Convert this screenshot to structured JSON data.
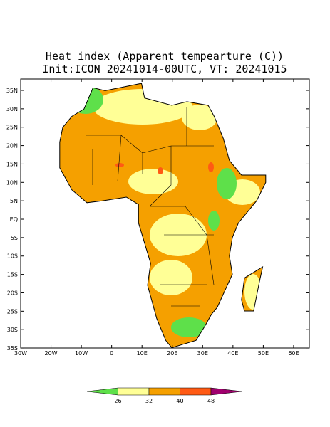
{
  "map": {
    "title": "Heat index (Apparent tempearture (C))",
    "subtitle": "Init:ICON 20241014-00UTC, VT: 20241015",
    "lat_ticks": [
      "35N",
      "30N",
      "25N",
      "20N",
      "15N",
      "10N",
      "5N",
      "EQ",
      "5S",
      "10S",
      "15S",
      "20S",
      "25S",
      "30S",
      "35S"
    ],
    "lon_ticks": [
      "30W",
      "20W",
      "10W",
      "0",
      "10E",
      "20E",
      "30E",
      "40E",
      "50E",
      "60E"
    ],
    "colorbar": {
      "labels": [
        "26",
        "32",
        "40",
        "48"
      ],
      "colors": [
        "#5ee04a",
        "#ffff96",
        "#f5a000",
        "#ff5a14",
        "#a0006e"
      ]
    }
  }
}
